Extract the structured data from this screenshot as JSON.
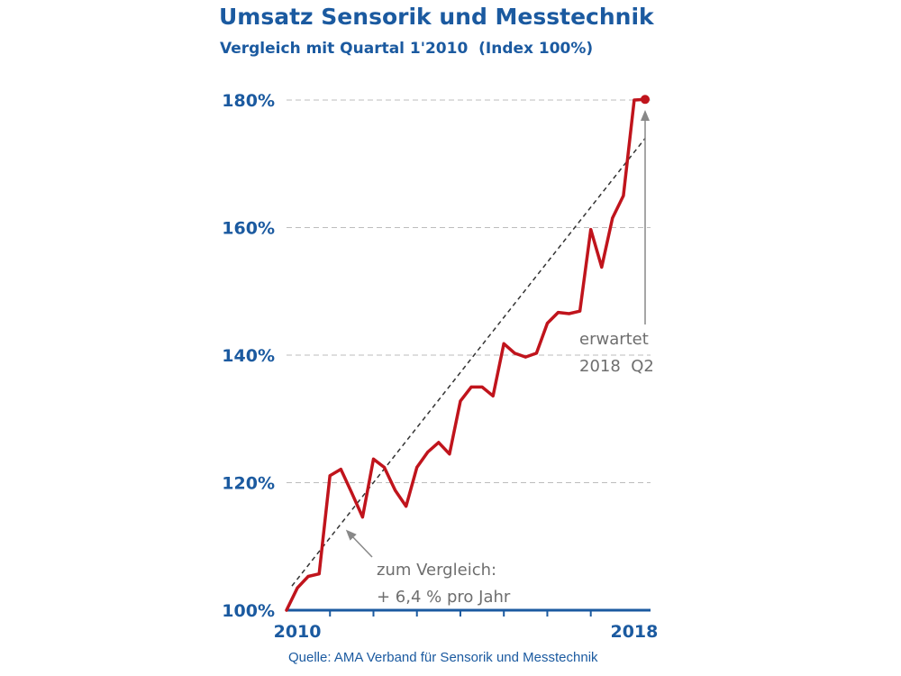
{
  "title": "Umsatz Sensorik und Messtechnik",
  "subtitle": "Vergleich mit Quartal 1'2010  (Index 100%)",
  "source": "Quelle: AMA Verband für Sensorik und Messtechnik",
  "colors": {
    "series": "#c0141c",
    "text": "#1b5aa0",
    "trend": "#333333",
    "grid": "#bdbdbd",
    "annotation": "#6e6e6e"
  },
  "chart_data": {
    "type": "line",
    "title": "Umsatz Sensorik und Messtechnik",
    "subtitle": "Vergleich mit Quartal 1'2010  (Index 100%)",
    "xlabel": "",
    "ylabel": "",
    "unit": "%",
    "ylim": [
      100,
      180
    ],
    "yticks": [
      {
        "value": 100,
        "label": "100%"
      },
      {
        "value": 120,
        "label": "120%"
      },
      {
        "value": 140,
        "label": "140%"
      },
      {
        "value": 160,
        "label": "160%"
      },
      {
        "value": 180,
        "label": "180%"
      }
    ],
    "xlim": [
      "2010 Q1",
      "2018 Q2"
    ],
    "xticks": [
      {
        "value": "2010",
        "label": "2010"
      },
      {
        "value": "2018",
        "label": "2018"
      }
    ],
    "grid": "horizontal dashed",
    "series": [
      {
        "x": [
          "2010 Q1",
          "2010 Q2",
          "2010 Q3",
          "2010 Q4",
          "2011 Q1",
          "2011 Q2",
          "2011 Q3",
          "2011 Q4",
          "2012 Q1",
          "2012 Q2",
          "2012 Q3",
          "2012 Q4",
          "2013 Q1",
          "2013 Q2",
          "2013 Q3",
          "2013 Q4",
          "2014 Q1",
          "2014 Q2",
          "2014 Q3",
          "2014 Q4",
          "2015 Q1",
          "2015 Q2",
          "2015 Q3",
          "2015 Q4",
          "2016 Q1",
          "2016 Q2",
          "2016 Q3",
          "2016 Q4",
          "2017 Q1",
          "2017 Q2",
          "2017 Q3",
          "2017 Q4",
          "2018 Q1",
          "2018 Q2"
        ],
        "values": [
          100,
          103.5,
          105.3,
          105.7,
          121.1,
          122.1,
          118.4,
          114.6,
          123.7,
          122.4,
          118.8,
          116.3,
          122.4,
          124.8,
          126.3,
          124.5,
          132.8,
          135.0,
          135.0,
          133.6,
          141.8,
          140.3,
          139.7,
          140.3,
          145.0,
          146.7,
          146.5,
          146.9,
          159.7,
          153.8,
          161.5,
          165.0,
          180.0,
          180.1
        ]
      }
    ],
    "trend": {
      "label_lines": [
        "zum Vergleich:",
        "+ 6,4 % pro Jahr"
      ],
      "growth_per_year_percent": 6.4,
      "start": 103.8,
      "end": 174.0
    },
    "annotations": [
      {
        "target": "2018 Q2",
        "lines": [
          "erwartet",
          "2018  Q2"
        ]
      },
      {
        "target": "trend",
        "lines": [
          "zum Vergleich:",
          "+ 6,4 % pro Jahr"
        ]
      }
    ]
  }
}
